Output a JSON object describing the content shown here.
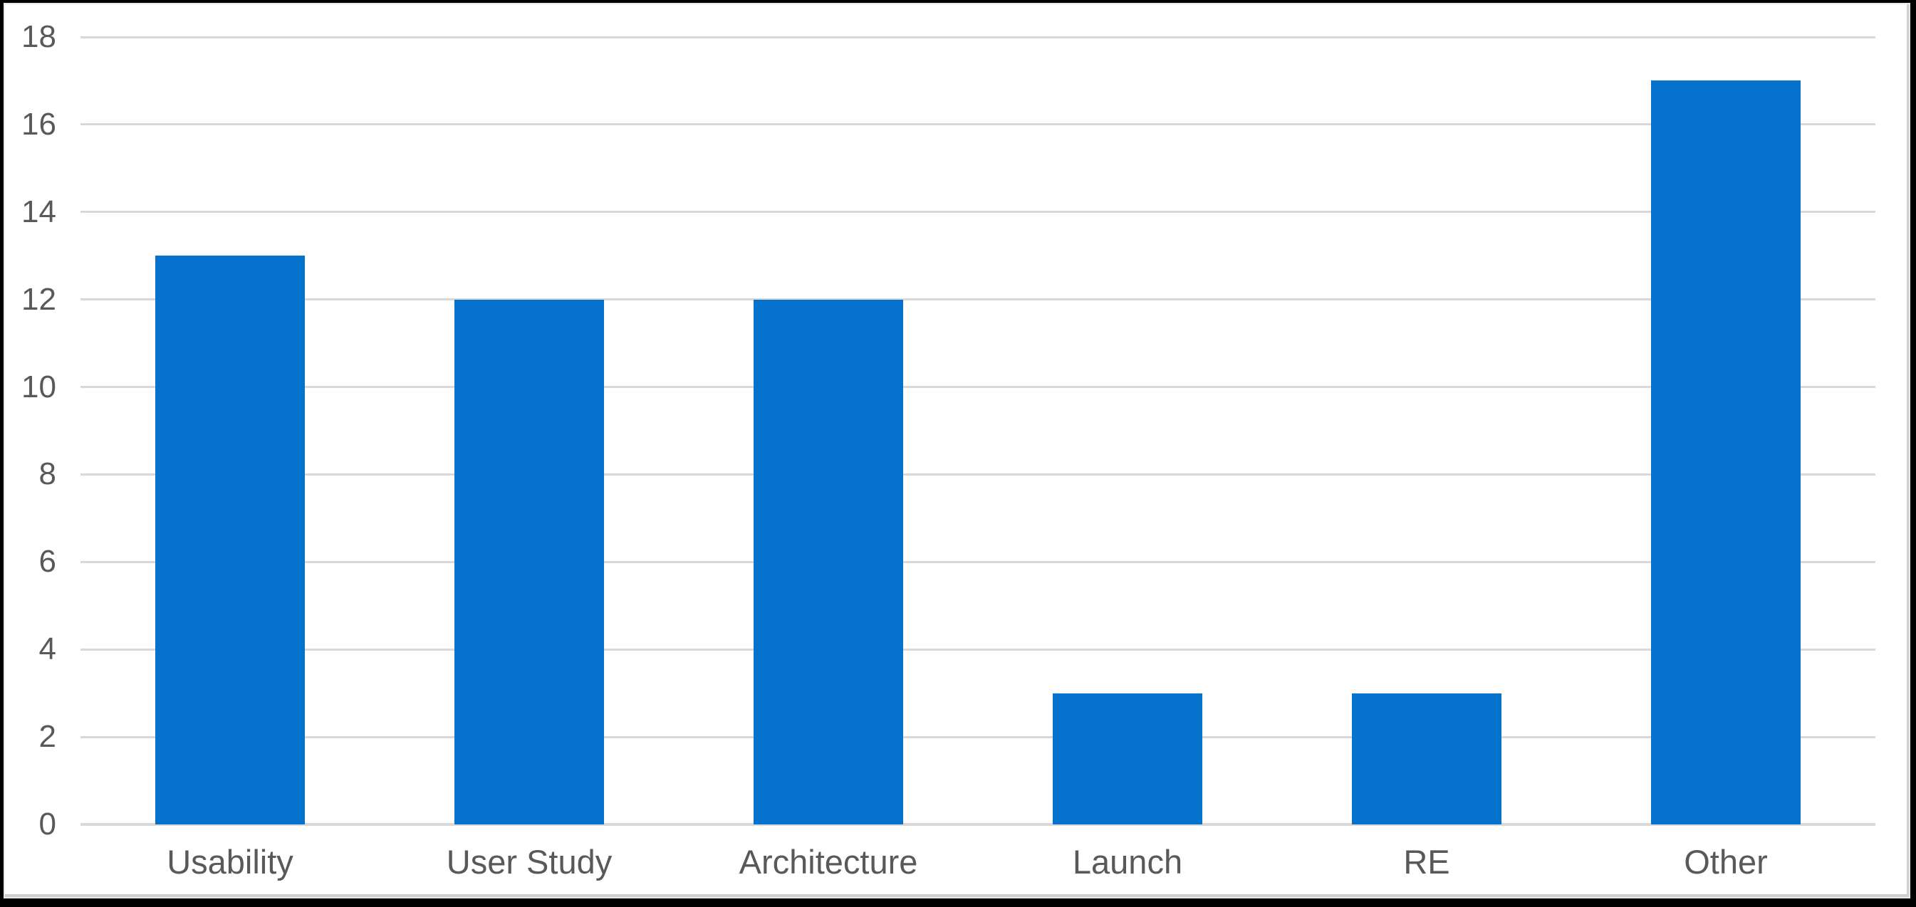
{
  "chart_data": {
    "type": "bar",
    "categories": [
      "Usability",
      "User Study",
      "Architecture",
      "Launch",
      "RE",
      "Other"
    ],
    "values": [
      13,
      12,
      12,
      3,
      3,
      17
    ],
    "title": "",
    "xlabel": "",
    "ylabel": "",
    "ylim": [
      0,
      18
    ],
    "yticks": [
      0,
      2,
      4,
      6,
      8,
      10,
      12,
      14,
      16,
      18
    ],
    "grid": "horizontal-on",
    "legend": "none",
    "colors": {
      "bar": "#0572CE",
      "gridline": "#D9D9D9",
      "axis_line": "#D9D9D9",
      "tick_label": "#595959",
      "background": "#FFFFFF",
      "frame": "#000000"
    }
  }
}
